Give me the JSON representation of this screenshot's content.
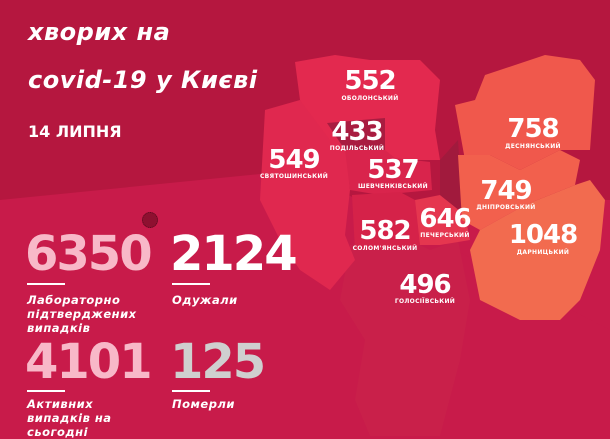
{
  "header": {
    "line1": "хворих на",
    "line2": "covid-19 у Києві",
    "date": "14 ЛИПНЯ"
  },
  "colors": {
    "background": "#c81b4a",
    "header_bg": "#b5173f",
    "right_bank": "#e0284f",
    "podil": "#a91c40",
    "left_bank": "#f0584c",
    "darnytsia": "#f26b4f",
    "pink": "#f8b8c8",
    "grey": "#cfcfcf"
  },
  "districts": [
    {
      "name": "ОБОЛОНСЬКИЙ",
      "cases": "552"
    },
    {
      "name": "ПОДІЛЬСЬКИЙ",
      "cases": "433"
    },
    {
      "name": "СВЯТОШИНСЬКИЙ",
      "cases": "549"
    },
    {
      "name": "ШЕВЧЕНКІВСЬКИЙ",
      "cases": "537"
    },
    {
      "name": "СОЛОМ'ЯНСЬКИЙ",
      "cases": "582"
    },
    {
      "name": "ПЕЧЕРСЬКИЙ",
      "cases": "646"
    },
    {
      "name": "ГОЛОСІЇВСЬКИЙ",
      "cases": "496"
    },
    {
      "name": "ДЕСНЯНСЬКИЙ",
      "cases": "758"
    },
    {
      "name": "ДНІПРОВСЬКИЙ",
      "cases": "749"
    },
    {
      "name": "ДАРНИЦЬКИЙ",
      "cases": "1048"
    }
  ],
  "stats": [
    {
      "value": "6350",
      "label": "Лабораторно підтверджених випадків"
    },
    {
      "value": "2124",
      "label": "Одужали"
    },
    {
      "value": "4101",
      "label": "Активних випадків на сьогодні"
    },
    {
      "value": "125",
      "label": "Померли"
    }
  ],
  "icons": {
    "virus": "virus-icon"
  }
}
